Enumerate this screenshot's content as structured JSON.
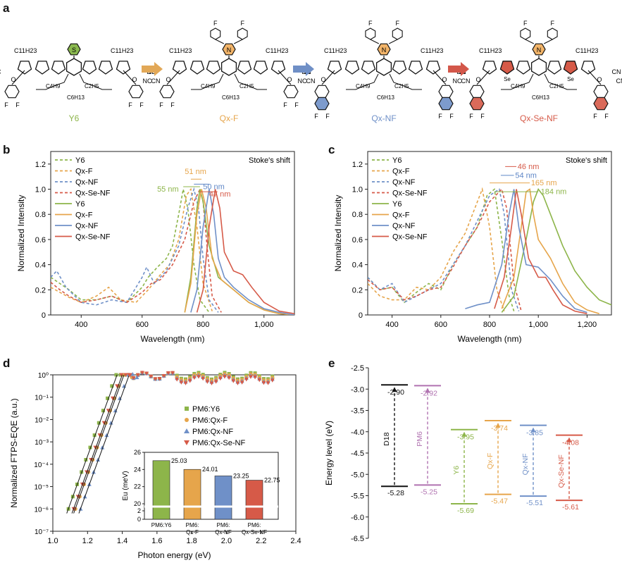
{
  "panel_labels": {
    "a": "a",
    "b": "b",
    "c": "c",
    "d": "d",
    "e": "e"
  },
  "panel_a": {
    "molecules": [
      {
        "name": "Y6",
        "color": "#8db54a",
        "core_label": "S",
        "core_color": "#8ab84e"
      },
      {
        "name": "Qx-F",
        "color": "#e6a54b",
        "core_label": "N",
        "core_color": "#f2b469"
      },
      {
        "name": "Qx-NF",
        "color": "#6f90c8",
        "core_label": "N",
        "core_color": "#f2b469"
      },
      {
        "name": "Qx-Se-NF",
        "color": "#d65a48",
        "core_label": "N",
        "core_color": "#f2b469"
      }
    ],
    "arrow_colors": [
      "#e2a857",
      "#6f8fc6",
      "#d3574a"
    ],
    "chain_labels": [
      "C11H23",
      "C4H9",
      "C2H5",
      "C6H13",
      "NC",
      "CN",
      "O",
      "F",
      "Se",
      "S",
      "N"
    ]
  },
  "chart_data": [
    {
      "type": "line",
      "panel": "b",
      "xlabel": "Wavelength (nm)",
      "ylabel": "Normalized Intensity",
      "xlim": [
        300,
        1100
      ],
      "ylim": [
        0,
        1.3
      ],
      "xticks": [
        "400",
        "600",
        "800",
        "1,000"
      ],
      "yticks": [
        "0",
        "0.2",
        "0.4",
        "0.6",
        "0.8",
        "1.0",
        "1.2"
      ],
      "annotation_title": "Stoke's shift",
      "shift_labels": [
        {
          "text": "55 nm",
          "color": "#8db54a"
        },
        {
          "text": "51 nm",
          "color": "#e6a54b"
        },
        {
          "text": "50 nm",
          "color": "#5e86c6"
        },
        {
          "text": "47 nm",
          "color": "#d65a48"
        }
      ],
      "legend": [
        "Y6",
        "Qx-F",
        "Qx-NF",
        "Qx-Se-NF",
        "Y6",
        "Qx-F",
        "Qx-NF",
        "Qx-Se-NF"
      ],
      "series": [
        {
          "name": "Y6",
          "style": "dashed",
          "color": "#8db54a",
          "x": [
            300,
            330,
            360,
            400,
            450,
            500,
            550,
            600,
            620,
            650,
            680,
            700,
            720,
            735,
            750,
            770,
            790,
            820
          ],
          "y": [
            0.3,
            0.25,
            0.2,
            0.12,
            0.12,
            0.15,
            0.1,
            0.22,
            0.3,
            0.38,
            0.45,
            0.55,
            0.8,
            1.0,
            0.85,
            0.4,
            0.12,
            0.02
          ]
        },
        {
          "name": "Qx-F",
          "style": "dashed",
          "color": "#e6a54b",
          "x": [
            300,
            330,
            360,
            400,
            450,
            490,
            530,
            580,
            620,
            660,
            690,
            720,
            745,
            760,
            780,
            800,
            830
          ],
          "y": [
            0.22,
            0.18,
            0.14,
            0.1,
            0.15,
            0.22,
            0.12,
            0.1,
            0.2,
            0.32,
            0.4,
            0.6,
            0.95,
            1.0,
            0.7,
            0.25,
            0.03
          ]
        },
        {
          "name": "Qx-NF",
          "style": "dashed",
          "color": "#6f90c8",
          "x": [
            300,
            320,
            350,
            400,
            450,
            500,
            550,
            600,
            615,
            640,
            680,
            720,
            750,
            770,
            785,
            800,
            820,
            850
          ],
          "y": [
            0.3,
            0.35,
            0.22,
            0.1,
            0.08,
            0.12,
            0.1,
            0.3,
            0.38,
            0.25,
            0.35,
            0.55,
            0.85,
            1.0,
            0.85,
            0.45,
            0.12,
            0.02
          ]
        },
        {
          "name": "Qx-Se-NF",
          "style": "dashed",
          "color": "#d65a48",
          "x": [
            300,
            330,
            360,
            400,
            450,
            500,
            550,
            600,
            630,
            660,
            700,
            740,
            770,
            790,
            800,
            815,
            830,
            860
          ],
          "y": [
            0.26,
            0.2,
            0.15,
            0.1,
            0.12,
            0.15,
            0.1,
            0.18,
            0.25,
            0.28,
            0.4,
            0.6,
            0.9,
            1.0,
            0.9,
            0.5,
            0.15,
            0.02
          ]
        },
        {
          "name": "Y6",
          "style": "solid",
          "color": "#8db54a",
          "x": [
            740,
            760,
            780,
            790,
            800,
            820,
            850,
            900,
            950,
            1000,
            1050,
            1100
          ],
          "y": [
            0.02,
            0.3,
            0.85,
            1.0,
            0.9,
            0.55,
            0.3,
            0.2,
            0.1,
            0.04,
            0.01,
            0.0
          ]
        },
        {
          "name": "Qx-F",
          "style": "solid",
          "color": "#e6a54b",
          "x": [
            740,
            760,
            780,
            795,
            810,
            830,
            860,
            900,
            950,
            1000,
            1050,
            1100
          ],
          "y": [
            0.02,
            0.25,
            0.8,
            1.0,
            0.85,
            0.45,
            0.28,
            0.2,
            0.1,
            0.04,
            0.01,
            0.0
          ]
        },
        {
          "name": "Qx-NF",
          "style": "solid",
          "color": "#6f90c8",
          "x": [
            760,
            780,
            800,
            820,
            835,
            850,
            870,
            900,
            950,
            1000,
            1050,
            1100
          ],
          "y": [
            0.02,
            0.2,
            0.7,
            1.0,
            0.8,
            0.45,
            0.3,
            0.22,
            0.12,
            0.05,
            0.02,
            0.0
          ]
        },
        {
          "name": "Qx-Se-NF",
          "style": "solid",
          "color": "#d65a48",
          "x": [
            780,
            800,
            820,
            840,
            855,
            870,
            900,
            930,
            960,
            1000,
            1050,
            1100
          ],
          "y": [
            0.02,
            0.2,
            0.7,
            1.0,
            0.85,
            0.5,
            0.35,
            0.32,
            0.22,
            0.1,
            0.03,
            0.01
          ]
        }
      ]
    },
    {
      "type": "line",
      "panel": "c",
      "xlabel": "Wavelength (nm)",
      "ylabel": "Normalized Intensity",
      "xlim": [
        300,
        1300
      ],
      "ylim": [
        0,
        1.3
      ],
      "xticks": [
        "400",
        "600",
        "800",
        "1,000",
        "1,200"
      ],
      "yticks": [
        "0",
        "0.2",
        "0.4",
        "0.6",
        "0.8",
        "1.0",
        "1.2"
      ],
      "annotation_title": "Stoke's shift",
      "shift_labels": [
        {
          "text": "46 nm",
          "color": "#d65a48"
        },
        {
          "text": "54 nm",
          "color": "#5e86c6"
        },
        {
          "text": "165 nm",
          "color": "#e6a54b"
        },
        {
          "text": "184 nm",
          "color": "#8db54a"
        }
      ],
      "legend": [
        "Y6",
        "Qx-F",
        "Qx-NF",
        "Qx-Se-NF",
        "Y6",
        "Qx-F",
        "Qx-NF",
        "Qx-Se-NF"
      ],
      "series": [
        {
          "name": "Y6",
          "style": "dashed",
          "color": "#8db54a",
          "x": [
            300,
            350,
            400,
            450,
            500,
            550,
            600,
            650,
            700,
            750,
            790,
            820,
            850,
            880,
            900
          ],
          "y": [
            0.3,
            0.2,
            0.22,
            0.1,
            0.18,
            0.25,
            0.2,
            0.4,
            0.55,
            0.7,
            0.95,
            1.0,
            0.6,
            0.15,
            0.03
          ]
        },
        {
          "name": "Qx-F",
          "style": "dashed",
          "color": "#e6a54b",
          "x": [
            300,
            350,
            400,
            450,
            500,
            550,
            600,
            650,
            700,
            740,
            770,
            800,
            830,
            860
          ],
          "y": [
            0.25,
            0.15,
            0.12,
            0.12,
            0.22,
            0.2,
            0.3,
            0.5,
            0.65,
            0.85,
            1.0,
            0.7,
            0.2,
            0.03
          ]
        },
        {
          "name": "Qx-NF",
          "style": "dashed",
          "color": "#6f90c8",
          "x": [
            300,
            350,
            400,
            450,
            500,
            550,
            600,
            650,
            700,
            750,
            800,
            840,
            860,
            890,
            920
          ],
          "y": [
            0.3,
            0.2,
            0.25,
            0.1,
            0.15,
            0.2,
            0.25,
            0.4,
            0.55,
            0.75,
            0.95,
            1.0,
            0.8,
            0.2,
            0.03
          ]
        },
        {
          "name": "Qx-Se-NF",
          "style": "dashed",
          "color": "#d65a48",
          "x": [
            300,
            350,
            400,
            450,
            500,
            550,
            600,
            650,
            700,
            750,
            800,
            850,
            870,
            900,
            930
          ],
          "y": [
            0.28,
            0.2,
            0.22,
            0.12,
            0.15,
            0.2,
            0.22,
            0.38,
            0.55,
            0.7,
            0.9,
            1.0,
            0.85,
            0.25,
            0.03
          ]
        },
        {
          "name": "Y6",
          "style": "solid",
          "color": "#8db54a",
          "x": [
            850,
            900,
            950,
            980,
            1000,
            1020,
            1050,
            1100,
            1150,
            1200,
            1250,
            1300
          ],
          "y": [
            0.02,
            0.15,
            0.6,
            0.9,
            1.0,
            0.95,
            0.8,
            0.55,
            0.35,
            0.22,
            0.12,
            0.08
          ]
        },
        {
          "name": "Qx-F",
          "style": "solid",
          "color": "#e6a54b",
          "x": [
            850,
            900,
            930,
            950,
            965,
            980,
            1000,
            1050,
            1100,
            1150,
            1200,
            1250
          ],
          "y": [
            0.05,
            0.3,
            0.7,
            0.98,
            1.0,
            0.8,
            0.6,
            0.45,
            0.25,
            0.1,
            0.04,
            0.01
          ]
        },
        {
          "name": "Qx-NF",
          "style": "solid",
          "color": "#6f90c8",
          "x": [
            700,
            750,
            800,
            850,
            880,
            900,
            920,
            950,
            1000,
            1050,
            1100,
            1150,
            1200
          ],
          "y": [
            0.05,
            0.08,
            0.1,
            0.4,
            0.8,
            1.0,
            0.7,
            0.4,
            0.38,
            0.28,
            0.15,
            0.05,
            0.02
          ]
        },
        {
          "name": "Qx-Se-NF",
          "style": "solid",
          "color": "#d65a48",
          "x": [
            820,
            860,
            890,
            910,
            930,
            960,
            1000,
            1030,
            1060,
            1100,
            1150,
            1200
          ],
          "y": [
            0.05,
            0.3,
            0.7,
            1.0,
            0.8,
            0.45,
            0.3,
            0.3,
            0.2,
            0.08,
            0.03,
            0.01
          ]
        }
      ]
    },
    {
      "type": "scatter",
      "panel": "d",
      "xlabel": "Photon energy (eV)",
      "ylabel": "Normalized FTPS-EQE (a.u.)",
      "xlim": [
        1.0,
        2.4
      ],
      "ylim_exp": [
        -7,
        0
      ],
      "xticks": [
        "1.0",
        "1.2",
        "1.4",
        "1.6",
        "1.8",
        "2.0",
        "2.2",
        "2.4"
      ],
      "yticks": [
        "10⁻⁷",
        "10⁻⁶",
        "10⁻⁵",
        "10⁻⁴",
        "10⁻³",
        "10⁻²",
        "10⁻¹",
        "10⁰"
      ],
      "legend": [
        {
          "name": "PM6:Y6",
          "marker": "square",
          "color": "#8db54a"
        },
        {
          "name": "PM6:Qx-F",
          "marker": "circle",
          "color": "#e6a54b"
        },
        {
          "name": "PM6:Qx-NF",
          "marker": "triangle-up",
          "color": "#6f90c8"
        },
        {
          "name": "PM6:Qx-Se-NF",
          "marker": "triangle-down",
          "color": "#d65a48"
        }
      ],
      "inset": {
        "ylabel": "Eu (meV)",
        "yticks": [
          "0",
          "2",
          "20",
          "22",
          "24",
          "26"
        ],
        "categories": [
          "PM6:Y6",
          "PM6:\nQx-F",
          "PM6:\nQx-NF",
          "PM6:\nQx-Se-NF"
        ],
        "values": [
          25.03,
          24.01,
          23.25,
          22.75
        ],
        "value_labels": [
          "25.03",
          "24.01",
          "23.25",
          "22.75"
        ],
        "colors": [
          "#8db54a",
          "#e6a54b",
          "#6f90c8",
          "#d65a48"
        ]
      }
    },
    {
      "type": "diagram",
      "panel": "e",
      "ylabel": "Energy level (eV)",
      "ylim": [
        -6.5,
        -2.5
      ],
      "yticks": [
        "-2.5",
        "-3.0",
        "-3.5",
        "-4.0",
        "-4.5",
        "-5.0",
        "-5.5",
        "-6.0",
        "-6.5"
      ],
      "materials": [
        {
          "name": "D18",
          "color": "#111111",
          "lumo": -2.9,
          "homo": -5.28,
          "lumo_label": "-2.90",
          "homo_label": "-5.28"
        },
        {
          "name": "PM6",
          "color": "#b072b0",
          "lumo": -2.92,
          "homo": -5.25,
          "lumo_label": "-2.92",
          "homo_label": "-5.25"
        },
        {
          "name": "Y6",
          "color": "#8db54a",
          "lumo": -3.95,
          "homo": -5.69,
          "lumo_label": "-3.95",
          "homo_label": "-5.69"
        },
        {
          "name": "Qx-F",
          "color": "#e6a54b",
          "lumo": -3.74,
          "homo": -5.47,
          "lumo_label": "-3.74",
          "homo_label": "-5.47"
        },
        {
          "name": "Qx-NF",
          "color": "#6f90c8",
          "lumo": -3.85,
          "homo": -5.51,
          "lumo_label": "-3.85",
          "homo_label": "-5.51"
        },
        {
          "name": "Qx-Se-NF",
          "color": "#d65a48",
          "lumo": -4.08,
          "homo": -5.61,
          "lumo_label": "-4.08",
          "homo_label": "-5.61"
        }
      ]
    }
  ]
}
